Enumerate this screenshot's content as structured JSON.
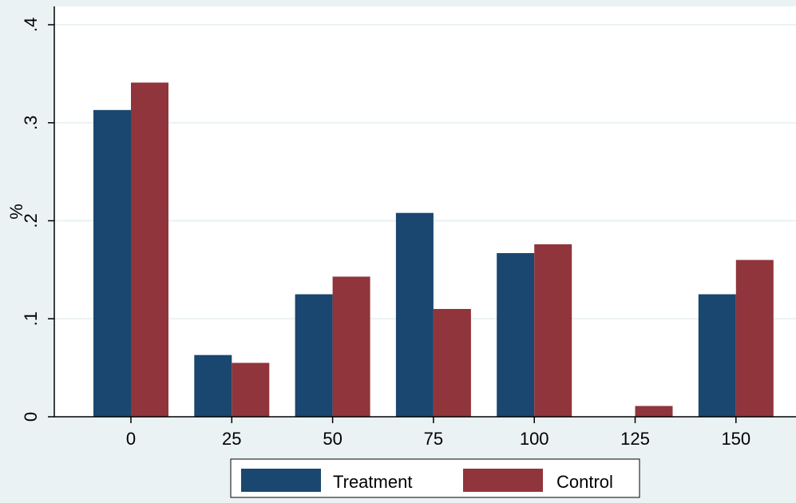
{
  "chart_data": {
    "type": "bar",
    "categories": [
      "0",
      "25",
      "50",
      "75",
      "100",
      "125",
      "150"
    ],
    "series": [
      {
        "name": "Treatment",
        "color": "#1a476f",
        "values": [
          0.313,
          0.063,
          0.125,
          0.208,
          0.167,
          0.0,
          0.125
        ]
      },
      {
        "name": "Control",
        "color": "#90353b",
        "values": [
          0.341,
          0.055,
          0.143,
          0.11,
          0.176,
          0.011,
          0.16
        ]
      }
    ],
    "ylabel": "%",
    "xlabel": "",
    "ylim": [
      0,
      0.4
    ],
    "yticks": [
      {
        "value": 0,
        "label": "0"
      },
      {
        "value": 0.1,
        "label": ".1"
      },
      {
        "value": 0.2,
        "label": ".2"
      },
      {
        "value": 0.3,
        "label": ".3"
      },
      {
        "value": 0.4,
        "label": ".4"
      }
    ],
    "grid": true,
    "legend_position": "bottom",
    "plot_background": "#ffffff",
    "grid_color": "#eaf2f3"
  }
}
